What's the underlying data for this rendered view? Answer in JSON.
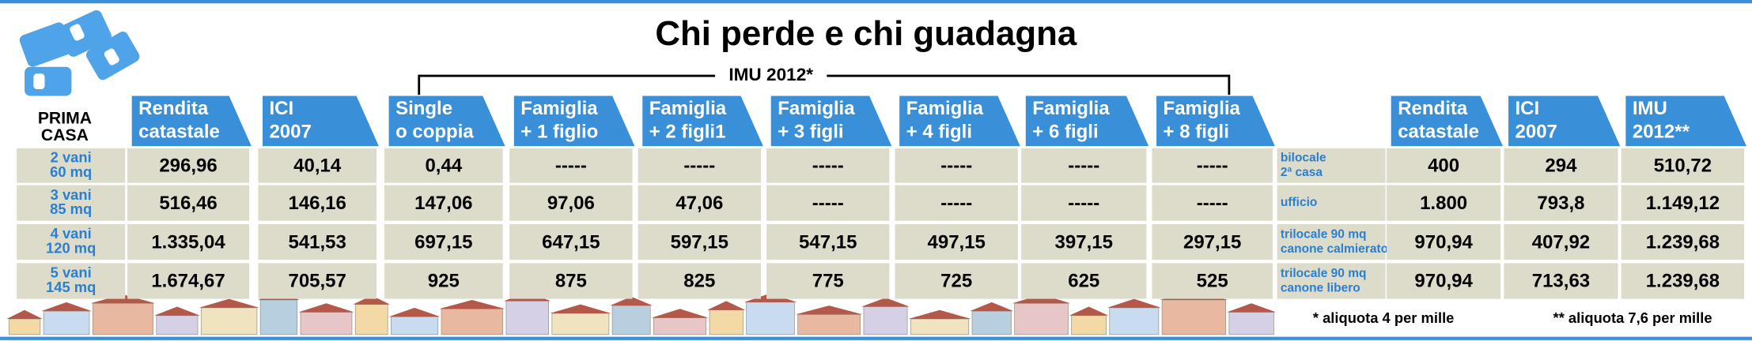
{
  "header": {
    "title": "Chi perde e chi guadagna",
    "group_label": "IMU 2012*",
    "corner_label": [
      "PRIMA",
      "CASA"
    ]
  },
  "left_table": {
    "columns": [
      [
        "Rendita",
        "catastale"
      ],
      [
        "ICI",
        "2007"
      ],
      [
        "Single",
        "o coppia"
      ],
      [
        "Famiglia",
        "+ 1 figlio"
      ],
      [
        "Famiglia",
        "+ 2 figli1"
      ],
      [
        "Famiglia",
        "+ 3 figli"
      ],
      [
        "Famiglia",
        "+ 4 figli"
      ],
      [
        "Famiglia",
        "+ 6 figli"
      ],
      [
        "Famiglia",
        "+ 8 figli"
      ]
    ],
    "rows": [
      {
        "label": [
          "2 vani",
          "60 mq"
        ],
        "values": [
          "296,96",
          "40,14",
          "0,44",
          "-----",
          "-----",
          "-----",
          "-----",
          "-----",
          "-----"
        ]
      },
      {
        "label": [
          "3 vani",
          "85 mq"
        ],
        "values": [
          "516,46",
          "146,16",
          "147,06",
          "97,06",
          "47,06",
          "-----",
          "-----",
          "-----",
          "-----"
        ]
      },
      {
        "label": [
          "4 vani",
          "120 mq"
        ],
        "values": [
          "1.335,04",
          "541,53",
          "697,15",
          "647,15",
          "597,15",
          "547,15",
          "497,15",
          "397,15",
          "297,15"
        ]
      },
      {
        "label": [
          "5 vani",
          "145 mq"
        ],
        "values": [
          "1.674,67",
          "705,57",
          "925",
          "875",
          "825",
          "775",
          "725",
          "625",
          "525"
        ]
      }
    ]
  },
  "right_table": {
    "columns": [
      [
        "Rendita",
        "catastale"
      ],
      [
        "ICI",
        "2007"
      ],
      [
        "IMU",
        "2012**"
      ]
    ],
    "rows": [
      {
        "label": [
          "bilocale",
          "2ª casa"
        ],
        "values": [
          "400",
          "294",
          "510,72"
        ]
      },
      {
        "label": [
          "ufficio"
        ],
        "values": [
          "1.800",
          "793,8",
          "1.149,12"
        ]
      },
      {
        "label": [
          "trilocale 90 mq",
          "canone calmierato"
        ],
        "values": [
          "970,94",
          "407,92",
          "1.239,68"
        ]
      },
      {
        "label": [
          "trilocale 90 mq",
          "canone libero"
        ],
        "values": [
          "970,94",
          "713,63",
          "1.239,68"
        ]
      }
    ]
  },
  "footnotes": [
    "* aliquota 4 per mille",
    "** aliquota 7,6 per mille"
  ]
}
